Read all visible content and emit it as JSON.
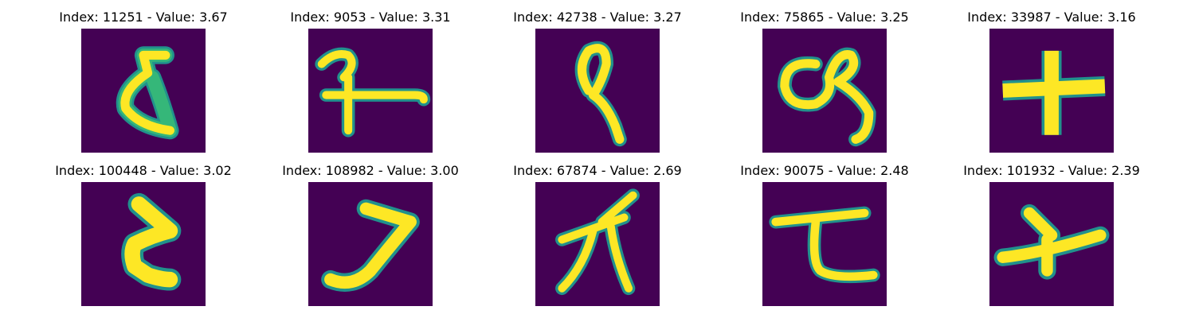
{
  "colors": {
    "background": "#440154",
    "stroke_core": "#fde725",
    "stroke_mid": "#35b779",
    "stroke_edge": "#21918c"
  },
  "panels": [
    {
      "index": "11251",
      "value": "3.67",
      "title": "Index: 11251 - Value: 3.67",
      "glyph": "s-curve"
    },
    {
      "index": "9053",
      "value": "3.31",
      "title": "Index: 9053 - Value: 3.31",
      "glyph": "hook-cross"
    },
    {
      "index": "42738",
      "value": "3.27",
      "title": "Index: 42738 - Value: 3.27",
      "glyph": "loop-tail"
    },
    {
      "index": "75865",
      "value": "3.25",
      "title": "Index: 75865 - Value: 3.25",
      "glyph": "double-loop"
    },
    {
      "index": "33987",
      "value": "3.16",
      "title": "Index: 33987 - Value: 3.16",
      "glyph": "plus"
    },
    {
      "index": "100448",
      "value": "3.02",
      "title": "Index: 100448 - Value: 3.02",
      "glyph": "z-shape"
    },
    {
      "index": "108982",
      "value": "3.00",
      "title": "Index: 108982 - Value: 3.00",
      "glyph": "seven"
    },
    {
      "index": "67874",
      "value": "2.69",
      "title": "Index: 67874 - Value: 2.69",
      "glyph": "pi-like"
    },
    {
      "index": "90075",
      "value": "2.48",
      "title": "Index: 90075 - Value: 2.48",
      "glyph": "t-curve"
    },
    {
      "index": "101932",
      "value": "2.39",
      "title": "Index: 101932 - Value: 2.39",
      "glyph": "cross-skew"
    }
  ]
}
